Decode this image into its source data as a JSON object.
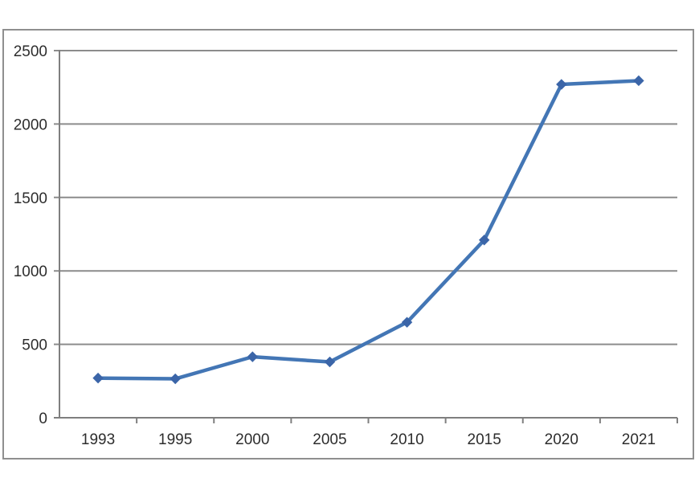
{
  "chart_data": {
    "type": "line",
    "title": "",
    "xlabel": "",
    "ylabel": "",
    "categories": [
      "1993",
      "1995",
      "2000",
      "2005",
      "2010",
      "2015",
      "2020",
      "2021"
    ],
    "values": [
      270,
      265,
      415,
      380,
      650,
      1210,
      2270,
      2295
    ],
    "ylim": [
      0,
      2500
    ],
    "ytick_step": 500,
    "ytick_labels": [
      "0",
      "500",
      "1000",
      "1500",
      "2000",
      "2500"
    ],
    "grid": true,
    "legend": false,
    "marker_shape": "diamond",
    "colors": {
      "line": "#4376B5",
      "marker": "#3B65A8",
      "gridline": "#8C8C8C",
      "axis": "#7F7F7F",
      "tick": "#7F7F7F",
      "label_text": "#2D2D2D",
      "frame_border": "#8F8F8F",
      "background": "#FFFFFF"
    }
  }
}
